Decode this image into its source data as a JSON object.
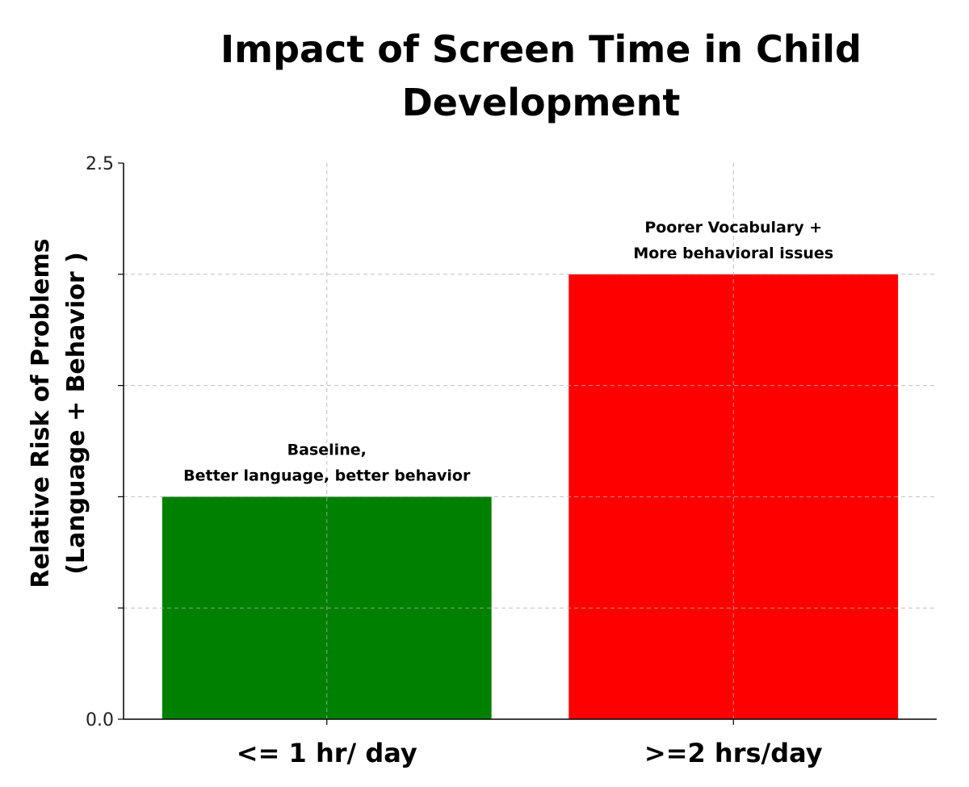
{
  "chart_data": {
    "type": "bar",
    "title": "Impact of Screen Time in Child Development",
    "xlabel": "",
    "ylabel_lines": [
      "Relative Risk of Problems",
      "(Language + Behavior )"
    ],
    "categories": [
      "<= 1 hr/ day",
      ">=2 hrs/day"
    ],
    "values": [
      1.0,
      2.0
    ],
    "colors": [
      "#008000",
      "#ff0000"
    ],
    "annotations": [
      [
        "Baseline,",
        "Better language, better behavior"
      ],
      [
        "Poorer Vocabulary +",
        "More behavioral issues"
      ]
    ],
    "ylim": [
      0,
      2.5
    ],
    "yticks": [
      0,
      0.5,
      1.0,
      1.5,
      2.0,
      2.5
    ],
    "ytick_labels": [
      "0.0",
      "",
      "",
      "",
      "",
      "2.5"
    ],
    "grid": true
  }
}
